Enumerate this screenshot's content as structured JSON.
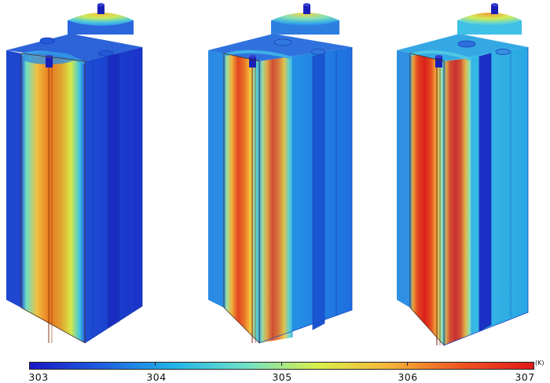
{
  "colorbar": {
    "min": 303,
    "max": 307,
    "unit": "(K)",
    "ticks": [
      "303",
      "304",
      "305",
      "306",
      "307"
    ],
    "stops": [
      "#1a18c4",
      "#1f5fe0",
      "#22b4e8",
      "#6fe0c6",
      "#d9ef4a",
      "#f5b43a",
      "#ee5422",
      "#e01a1a"
    ]
  },
  "cells": [
    {
      "max_temp_fraction": 0.72
    },
    {
      "max_temp_fraction": 0.88
    },
    {
      "max_temp_fraction": 0.96
    }
  ]
}
